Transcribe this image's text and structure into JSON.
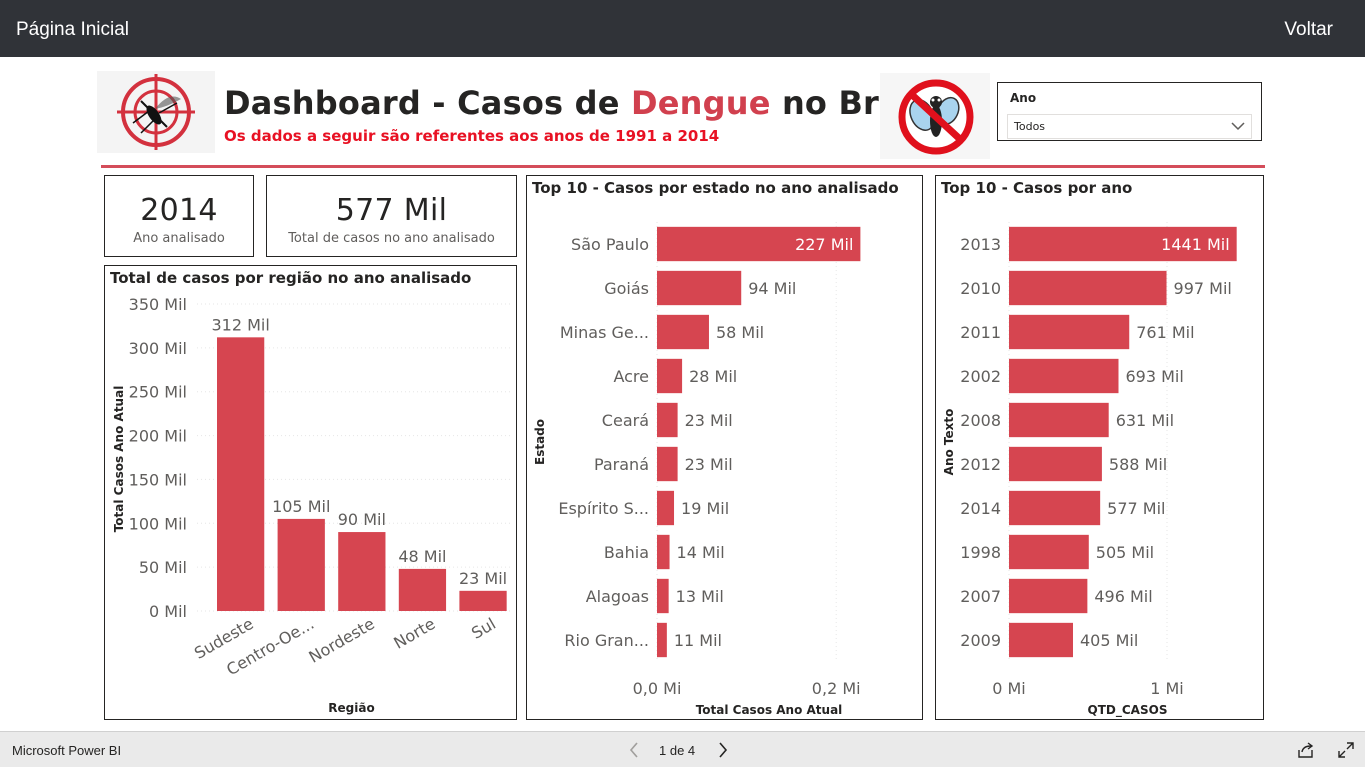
{
  "topbar": {
    "home_label": "Página Inicial",
    "back_label": "Voltar"
  },
  "header": {
    "title_prefix": "Dashboard - Casos de ",
    "title_highlight": "Dengue",
    "title_suffix": " no Brasil",
    "subtitle": "Os dados a seguir são referentes aos anos de 1991 a 2014"
  },
  "colors": {
    "bar": "#d64550",
    "title_highlight": "#d1404e",
    "subtitle": "#e81123",
    "topbar": "#303338"
  },
  "slicer": {
    "label": "Ano",
    "selected": "Todos"
  },
  "cards": [
    {
      "value": "2014",
      "caption": "Ano analisado"
    },
    {
      "value": "577 Mil",
      "caption": "Total de casos no ano analisado"
    }
  ],
  "panels": {
    "region": {
      "title": "Total de casos por região no ano analisado"
    },
    "states": {
      "title": "Top 10 - Casos por estado no ano analisado"
    },
    "years": {
      "title": "Top 10 - Casos por ano"
    }
  },
  "chart_data": [
    {
      "type": "bar",
      "title": "Total de casos por região no ano analisado",
      "xlabel": "Região",
      "ylabel": "Total Casos Ano Atual",
      "categories": [
        "Sudeste",
        "Centro-Oe...",
        "Nordeste",
        "Norte",
        "Sul"
      ],
      "values": [
        312,
        105,
        90,
        48,
        23
      ],
      "data_labels": [
        "312 Mil",
        "105 Mil",
        "90 Mil",
        "48 Mil",
        "23 Mil"
      ],
      "ylim": [
        0,
        350
      ],
      "yticks": [
        0,
        50,
        100,
        150,
        200,
        250,
        300,
        350
      ],
      "ytick_labels": [
        "0 Mil",
        "50 Mil",
        "100 Mil",
        "150 Mil",
        "200 Mil",
        "250 Mil",
        "300 Mil",
        "350 Mil"
      ],
      "grid": true
    },
    {
      "type": "bar",
      "orientation": "horizontal",
      "title": "Top 10 - Casos por estado no ano analisado",
      "xlabel": "Total Casos Ano Atual",
      "ylabel": "Estado",
      "categories": [
        "São Paulo",
        "Goiás",
        "Minas Ge...",
        "Acre",
        "Ceará",
        "Paraná",
        "Espírito S...",
        "Bahia",
        "Alagoas",
        "Rio Gran..."
      ],
      "values": [
        227,
        94,
        58,
        28,
        23,
        23,
        19,
        14,
        13,
        11
      ],
      "data_labels": [
        "227 Mil",
        "94 Mil",
        "58 Mil",
        "28 Mil",
        "23 Mil",
        "23 Mil",
        "19 Mil",
        "14 Mil",
        "13 Mil",
        "11 Mil"
      ],
      "xlim": [
        0,
        250
      ],
      "xticks": [
        0,
        200
      ],
      "xtick_labels": [
        "0,0 Mi",
        "0,2 Mi"
      ],
      "grid": true
    },
    {
      "type": "bar",
      "orientation": "horizontal",
      "title": "Top 10 - Casos por ano",
      "xlabel": "QTD_CASOS",
      "ylabel": "Ano Texto",
      "categories": [
        "2013",
        "2010",
        "2011",
        "2002",
        "2008",
        "2012",
        "2014",
        "1998",
        "2007",
        "2009"
      ],
      "values": [
        1441,
        997,
        761,
        693,
        631,
        588,
        577,
        505,
        496,
        405
      ],
      "data_labels": [
        "1441 Mil",
        "997 Mil",
        "761 Mil",
        "693 Mil",
        "631 Mil",
        "588 Mil",
        "577 Mil",
        "505 Mil",
        "496 Mil",
        "405 Mil"
      ],
      "xlim": [
        0,
        1500
      ],
      "xticks": [
        0,
        1000
      ],
      "xtick_labels": [
        "0 Mi",
        "1 Mi"
      ],
      "grid": true
    }
  ],
  "footer": {
    "brand": "Microsoft Power BI",
    "page_indicator": "1 de 4"
  }
}
